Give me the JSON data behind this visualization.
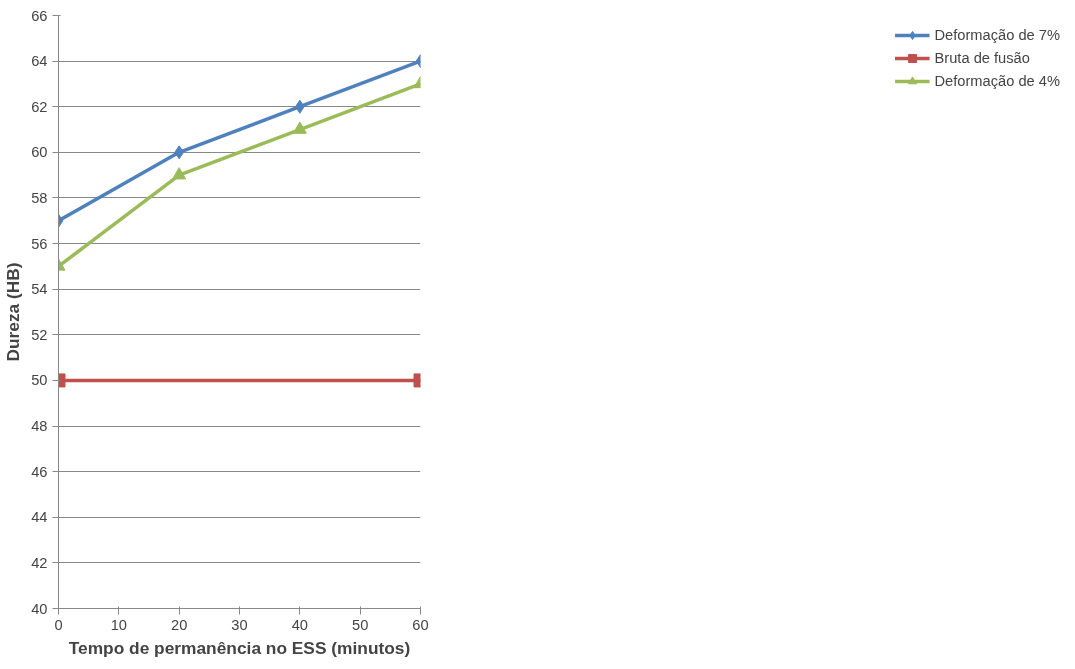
{
  "chart_data": {
    "type": "line",
    "xlabel": "Tempo de permanência no ESS (minutos)",
    "ylabel": "Dureza (HB)",
    "xlim": [
      0,
      60
    ],
    "xticks": [
      0,
      10,
      20,
      30,
      40,
      50,
      60
    ],
    "ylim": [
      40,
      66
    ],
    "yticks": [
      40,
      42,
      44,
      46,
      48,
      50,
      52,
      54,
      56,
      58,
      60,
      62,
      64,
      66
    ],
    "grid": "y",
    "legend": "right",
    "line_style": "solid",
    "series": [
      {
        "name": "Deformação de 7%",
        "color": "#4f81bd",
        "marker": "diamond",
        "x": [
          0,
          20,
          40,
          60
        ],
        "values": [
          57,
          60,
          62,
          64
        ]
      },
      {
        "name": "Bruta de fusão",
        "color": "#c0504d",
        "marker": "square",
        "x": [
          0,
          60
        ],
        "values": [
          50,
          50
        ]
      },
      {
        "name": "Deformação de 4%",
        "color": "#9bbb59",
        "marker": "triangle",
        "x": [
          0,
          20,
          40,
          60
        ],
        "values": [
          55,
          59,
          61,
          63
        ]
      }
    ]
  }
}
